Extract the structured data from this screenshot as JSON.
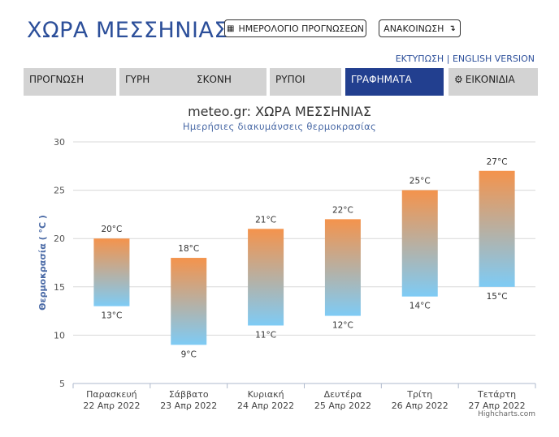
{
  "header": {
    "site_title": "ΧΩΡΑ ΜΕΣΣΗΝΙΑΣ",
    "calendar_button": "ΗΜΕΡΟΛΟΓΙΟ ΠΡΟΓΝΩΣΕΩΝ",
    "announcement_button": "ΑΝΑΚΟΙΝΩΣΗ",
    "print_link": "ΕΚΤΥΠΩΣΗ",
    "separator": "|",
    "english_link": "ENGLISH VERSION"
  },
  "tabs": [
    {
      "label": "ΠΡΟΓΝΩΣΗ",
      "active": false
    },
    {
      "label": "ΓΥΡΗ",
      "active": false
    },
    {
      "label": "ΣΚΟΝΗ",
      "active": false
    },
    {
      "label": "ΡΥΠΟΙ",
      "active": false
    },
    {
      "label": "ΓΡΑΦΗΜΑΤΑ",
      "active": true
    },
    {
      "label": "ΕΙΚΟΝΙΔΙΑ",
      "active": false,
      "icon": "gear-icon"
    }
  ],
  "chart_data": {
    "type": "bar",
    "title": "meteo.gr: ΧΩΡΑ ΜΕΣΣΗΝΙΑΣ",
    "subtitle": "Ημερήσιες διακυμάνσεις θερμοκρασίας",
    "ylabel": "Θερμοκρασία ( °C )",
    "ylim": [
      5,
      30
    ],
    "yticks": [
      5,
      10,
      15,
      20,
      25,
      30
    ],
    "grid": true,
    "categories": [
      {
        "day": "Παρασκευή",
        "date": "22 Απρ 2022"
      },
      {
        "day": "Σάββατο",
        "date": "23 Απρ 2022"
      },
      {
        "day": "Κυριακή",
        "date": "24 Απρ 2022"
      },
      {
        "day": "Δευτέρα",
        "date": "25 Απρ 2022"
      },
      {
        "day": "Τρίτη",
        "date": "26 Απρ 2022"
      },
      {
        "day": "Τετάρτη",
        "date": "27 Απρ 2022"
      }
    ],
    "low": [
      13,
      9,
      11,
      12,
      14,
      15
    ],
    "high": [
      20,
      18,
      21,
      22,
      25,
      27
    ],
    "unit": "°C",
    "colors": {
      "warm": "#f4934c",
      "cool": "#7ecbf5",
      "axis": "#333333",
      "grid": "#d8d8d8",
      "label": "#4a6aa6"
    }
  },
  "credits": "Highcharts.com"
}
